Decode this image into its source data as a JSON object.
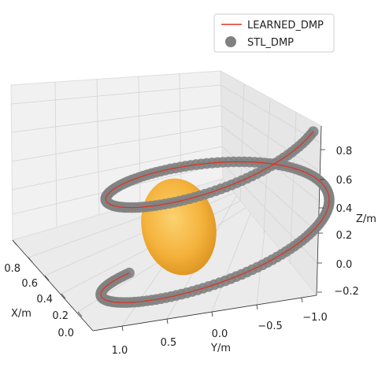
{
  "chart_data": {
    "type": "scatter",
    "projection": "3d",
    "xlabel": "X/m",
    "ylabel": "Y/m",
    "zlabel": "Z/m",
    "xticks": [
      "0.0",
      "0.2",
      "0.4",
      "0.6",
      "0.8"
    ],
    "yticks": [
      "1.0",
      "0.5",
      "0.0",
      "−0.5",
      "−1.0"
    ],
    "zticks": [
      "−0.2",
      "0.0",
      "0.2",
      "0.4",
      "0.6",
      "0.8"
    ],
    "xlim": [
      -0.1,
      0.9
    ],
    "ylim": [
      1.2,
      -1.2
    ],
    "zlim": [
      -0.2,
      1.0
    ],
    "grid": true,
    "legend_position": "top-right",
    "series": [
      {
        "name": "LEARNED_DMP",
        "kind": "line",
        "color": "#e0301e"
      },
      {
        "name": "STL_DMP",
        "kind": "scatter",
        "color": "#808080"
      }
    ],
    "obstacle": {
      "type": "ellipsoid",
      "color": "#f5b942",
      "center": [
        0.35,
        0.15,
        0.2
      ]
    }
  }
}
